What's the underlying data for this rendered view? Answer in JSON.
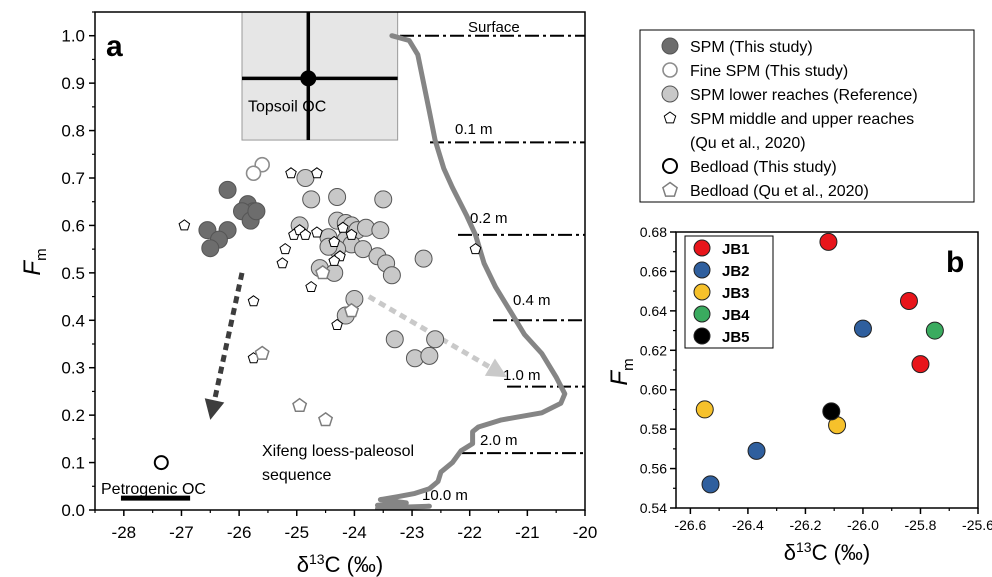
{
  "panel_a": {
    "label": "a",
    "xlabel": "δ13C (‰)",
    "ylabel": "Fm",
    "xlim": [
      -28.5,
      -20
    ],
    "ylim": [
      0,
      1.05
    ],
    "xticks": [
      "-28",
      "-27",
      "-26",
      "-25",
      "-24",
      "-23",
      "-22",
      "-21",
      "-20"
    ],
    "yticks": [
      "0.0",
      "0.1",
      "0.2",
      "0.3",
      "0.4",
      "0.5",
      "0.6",
      "0.7",
      "0.8",
      "0.9",
      "1.0"
    ],
    "annotations": {
      "topsoil": "Topsoil OC",
      "petrogenic": "Petrogenic OC",
      "loess_line1": "Xifeng loess-paleosol",
      "loess_line2": "sequence",
      "depths": [
        "Surface",
        "0.1 m",
        "0.2 m",
        "0.4 m",
        "1.0 m",
        "2.0 m",
        "10.0 m"
      ]
    }
  },
  "panel_b": {
    "label": "b",
    "xlabel": "δ13C (‰)",
    "ylabel": "Fm",
    "xlim": [
      -26.65,
      -25.6
    ],
    "ylim": [
      0.54,
      0.68
    ],
    "xticks": [
      "-26.6",
      "-26.4",
      "-26.2",
      "-26.0",
      "-25.8",
      "-25.6"
    ],
    "yticks": [
      "0.54",
      "0.56",
      "0.58",
      "0.60",
      "0.62",
      "0.64",
      "0.66",
      "0.68"
    ],
    "legend": [
      {
        "name": "JB1",
        "color": "#e8151b"
      },
      {
        "name": "JB2",
        "color": "#2f5f9e"
      },
      {
        "name": "JB3",
        "color": "#f6c12b"
      },
      {
        "name": "JB4",
        "color": "#3aab5f"
      },
      {
        "name": "JB5",
        "color": "#000000"
      }
    ]
  },
  "legend_a": [
    {
      "label": "SPM (This study)",
      "symbol": "circle-dark"
    },
    {
      "label": "Fine SPM (This study)",
      "symbol": "circle-open-gray"
    },
    {
      "label": "SPM lower reaches (Reference)",
      "symbol": "circle-light"
    },
    {
      "label": "SPM middle and upper reaches",
      "symbol": "pentagon-small"
    },
    {
      "label": "(Qu et al., 2020)",
      "symbol": "none"
    },
    {
      "label": "Bedload (This study)",
      "symbol": "circle-open-black"
    },
    {
      "label": "Bedload (Qu et al., 2020)",
      "symbol": "pentagon-open"
    }
  ],
  "colors": {
    "spm_dark": "#6d6d6d",
    "spm_light": "#c8c8c8",
    "arrow_dark": "#3d3d3d",
    "arrow_light": "#c9c9c9",
    "curve": "#858585",
    "topsoil_fill": "#e6e6e6"
  },
  "chart_data": [
    {
      "type": "scatter",
      "panel": "a",
      "xlabel": "δ13C (‰)",
      "ylabel": "Fm",
      "xlim": [
        -28.5,
        -20
      ],
      "ylim": [
        0,
        1.05
      ],
      "series": [
        {
          "name": "SPM (This study)",
          "points": [
            [
              -26.2,
              0.675
            ],
            [
              -25.85,
              0.645
            ],
            [
              -25.75,
              0.63
            ],
            [
              -25.95,
              0.63
            ],
            [
              -26.55,
              0.59
            ],
            [
              -26.2,
              0.59
            ],
            [
              -25.8,
              0.61
            ],
            [
              -26.35,
              0.57
            ],
            [
              -26.5,
              0.552
            ],
            [
              -25.7,
              0.63
            ]
          ]
        },
        {
          "name": "Fine SPM (This study)",
          "points": [
            [
              -25.6,
              0.728
            ],
            [
              -25.75,
              0.71
            ]
          ]
        },
        {
          "name": "SPM lower reaches (Reference)",
          "points": [
            [
              -24.85,
              0.7
            ],
            [
              -24.75,
              0.655
            ],
            [
              -24.3,
              0.66
            ],
            [
              -23.5,
              0.655
            ],
            [
              -24.95,
              0.6
            ],
            [
              -24.3,
              0.61
            ],
            [
              -24.15,
              0.605
            ],
            [
              -24.05,
              0.6
            ],
            [
              -23.95,
              0.59
            ],
            [
              -23.8,
              0.595
            ],
            [
              -23.55,
              0.59
            ],
            [
              -24.45,
              0.575
            ],
            [
              -24.15,
              0.57
            ],
            [
              -24.05,
              0.56
            ],
            [
              -23.85,
              0.55
            ],
            [
              -24.3,
              0.55
            ],
            [
              -24.45,
              0.555
            ],
            [
              -23.6,
              0.535
            ],
            [
              -23.45,
              0.52
            ],
            [
              -22.8,
              0.53
            ],
            [
              -24.6,
              0.51
            ],
            [
              -24.35,
              0.5
            ],
            [
              -23.35,
              0.495
            ],
            [
              -24.0,
              0.445
            ],
            [
              -24.15,
              0.41
            ],
            [
              -23.3,
              0.36
            ],
            [
              -22.6,
              0.36
            ],
            [
              -22.95,
              0.32
            ],
            [
              -22.7,
              0.325
            ]
          ]
        },
        {
          "name": "SPM middle and upper reaches (Qu et al., 2020)",
          "points": [
            [
              -26.95,
              0.6
            ],
            [
              -25.1,
              0.71
            ],
            [
              -24.65,
              0.71
            ],
            [
              -25.05,
              0.58
            ],
            [
              -24.95,
              0.59
            ],
            [
              -24.85,
              0.58
            ],
            [
              -24.65,
              0.585
            ],
            [
              -24.2,
              0.595
            ],
            [
              -24.35,
              0.565
            ],
            [
              -24.05,
              0.58
            ],
            [
              -24.25,
              0.535
            ],
            [
              -24.35,
              0.525
            ],
            [
              -25.2,
              0.55
            ],
            [
              -25.25,
              0.52
            ],
            [
              -24.75,
              0.47
            ],
            [
              -25.75,
              0.44
            ],
            [
              -24.3,
              0.39
            ],
            [
              -25.75,
              0.32
            ],
            [
              -21.9,
              0.55
            ]
          ]
        },
        {
          "name": "Bedload (This study)",
          "points": [
            [
              -27.35,
              0.1
            ]
          ]
        },
        {
          "name": "Bedload (Qu et al., 2020)",
          "points": [
            [
              -25.6,
              0.33
            ],
            [
              -24.95,
              0.22
            ],
            [
              -24.5,
              0.19
            ],
            [
              -24.05,
              0.42
            ],
            [
              -24.55,
              0.5
            ]
          ]
        }
      ],
      "regions": [
        {
          "name": "Topsoil OC",
          "x": [
            -25.95,
            -23.25
          ],
          "y": [
            0.78,
            1.05
          ],
          "center": [
            -24.8,
            0.91
          ]
        },
        {
          "name": "Petrogenic OC",
          "x": [
            -28.05,
            -26.85
          ],
          "y": [
            0.025,
            0.025
          ]
        }
      ],
      "loess_profile": {
        "label": "Xifeng loess-paleosol sequence",
        "curve": [
          [
            -23.35,
            1.0
          ],
          [
            -23.05,
            0.99
          ],
          [
            -22.9,
            0.96
          ],
          [
            -22.8,
            0.9
          ],
          [
            -22.7,
            0.84
          ],
          [
            -22.6,
            0.78
          ],
          [
            -22.45,
            0.72
          ],
          [
            -22.3,
            0.68
          ],
          [
            -22.05,
            0.62
          ],
          [
            -21.9,
            0.58
          ],
          [
            -21.75,
            0.52
          ],
          [
            -21.55,
            0.47
          ],
          [
            -21.3,
            0.42
          ],
          [
            -21.05,
            0.37
          ],
          [
            -20.75,
            0.33
          ],
          [
            -20.5,
            0.28
          ],
          [
            -20.35,
            0.245
          ],
          [
            -20.42,
            0.225
          ],
          [
            -20.75,
            0.205
          ],
          [
            -21.45,
            0.19
          ],
          [
            -21.85,
            0.175
          ],
          [
            -21.95,
            0.165
          ],
          [
            -21.95,
            0.14
          ],
          [
            -22.15,
            0.125
          ],
          [
            -22.3,
            0.1
          ],
          [
            -22.5,
            0.08
          ],
          [
            -22.55,
            0.06
          ],
          [
            -22.7,
            0.045
          ],
          [
            -22.95,
            0.035
          ],
          [
            -23.25,
            0.028
          ],
          [
            -23.55,
            0.022
          ],
          [
            -23.1,
            0.015
          ],
          [
            -23.6,
            0.01
          ],
          [
            -23.4,
            0.005
          ],
          [
            -22.7,
            0.008
          ],
          [
            -23.6,
            0.003
          ]
        ],
        "depth_markers": [
          {
            "label": "Surface",
            "y": 1.0
          },
          {
            "label": "0.1 m",
            "y": 0.775
          },
          {
            "label": "0.2 m",
            "y": 0.58
          },
          {
            "label": "0.4 m",
            "y": 0.4
          },
          {
            "label": "1.0 m",
            "y": 0.26
          },
          {
            "label": "2.0 m",
            "y": 0.12
          },
          {
            "label": "10.0 m",
            "y": 0.0
          }
        ]
      }
    },
    {
      "type": "scatter",
      "panel": "b",
      "xlabel": "δ13C (‰)",
      "ylabel": "Fm",
      "xlim": [
        -26.65,
        -25.6
      ],
      "ylim": [
        0.54,
        0.68
      ],
      "series": [
        {
          "name": "JB1",
          "points": [
            [
              -26.12,
              0.675
            ],
            [
              -25.84,
              0.645
            ],
            [
              -25.8,
              0.613
            ]
          ]
        },
        {
          "name": "JB2",
          "points": [
            [
              -26.0,
              0.631
            ],
            [
              -26.37,
              0.569
            ],
            [
              -26.53,
              0.552
            ]
          ]
        },
        {
          "name": "JB3",
          "points": [
            [
              -26.55,
              0.59
            ],
            [
              -26.09,
              0.582
            ]
          ]
        },
        {
          "name": "JB4",
          "points": [
            [
              -25.75,
              0.63
            ]
          ]
        },
        {
          "name": "JB5",
          "points": [
            [
              -26.11,
              0.589
            ]
          ]
        }
      ]
    }
  ]
}
